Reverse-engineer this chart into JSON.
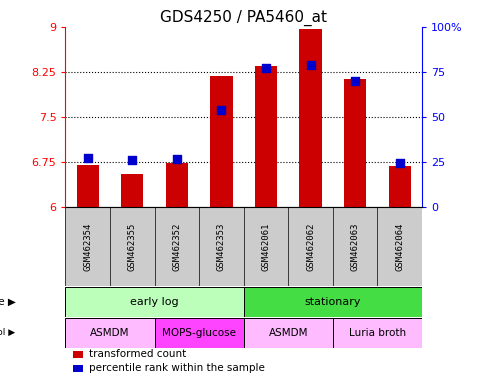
{
  "title": "GDS4250 / PA5460_at",
  "samples": [
    "GSM462354",
    "GSM462355",
    "GSM462352",
    "GSM462353",
    "GSM462061",
    "GSM462062",
    "GSM462063",
    "GSM462064"
  ],
  "red_values": [
    6.7,
    6.55,
    6.73,
    8.18,
    8.35,
    8.97,
    8.13,
    6.68
  ],
  "blue_values": [
    6.82,
    6.78,
    6.8,
    7.62,
    8.32,
    8.37,
    8.1,
    6.73
  ],
  "ylim_left": [
    6,
    9
  ],
  "ylim_right": [
    0,
    100
  ],
  "yticks_left": [
    6,
    6.75,
    7.5,
    8.25,
    9
  ],
  "yticks_right": [
    0,
    25,
    50,
    75,
    100
  ],
  "ytick_labels_left": [
    "6",
    "6.75",
    "7.5",
    "8.25",
    "9"
  ],
  "ytick_labels_right": [
    "0",
    "25",
    "50",
    "75",
    "100%"
  ],
  "hlines": [
    6.75,
    7.5,
    8.25
  ],
  "time_groups": [
    {
      "label": "early log",
      "start": 0,
      "end": 4,
      "color": "#bbffbb"
    },
    {
      "label": "stationary",
      "start": 4,
      "end": 8,
      "color": "#44dd44"
    }
  ],
  "protocol_groups": [
    {
      "label": "ASMDM",
      "start": 0,
      "end": 2,
      "color": "#ffbbff"
    },
    {
      "label": "MOPS-glucose",
      "start": 2,
      "end": 4,
      "color": "#ff44ff"
    },
    {
      "label": "ASMDM",
      "start": 4,
      "end": 6,
      "color": "#ffbbff"
    },
    {
      "label": "Luria broth",
      "start": 6,
      "end": 8,
      "color": "#ffbbff"
    }
  ],
  "bar_color": "#cc0000",
  "dot_color": "#0000cc",
  "bar_base": 6.0,
  "bar_width": 0.5,
  "dot_size": 35,
  "sample_bg_color": "#cccccc",
  "legend_items": [
    {
      "label": "transformed count",
      "color": "#cc0000"
    },
    {
      "label": "percentile rank within the sample",
      "color": "#0000cc"
    }
  ]
}
